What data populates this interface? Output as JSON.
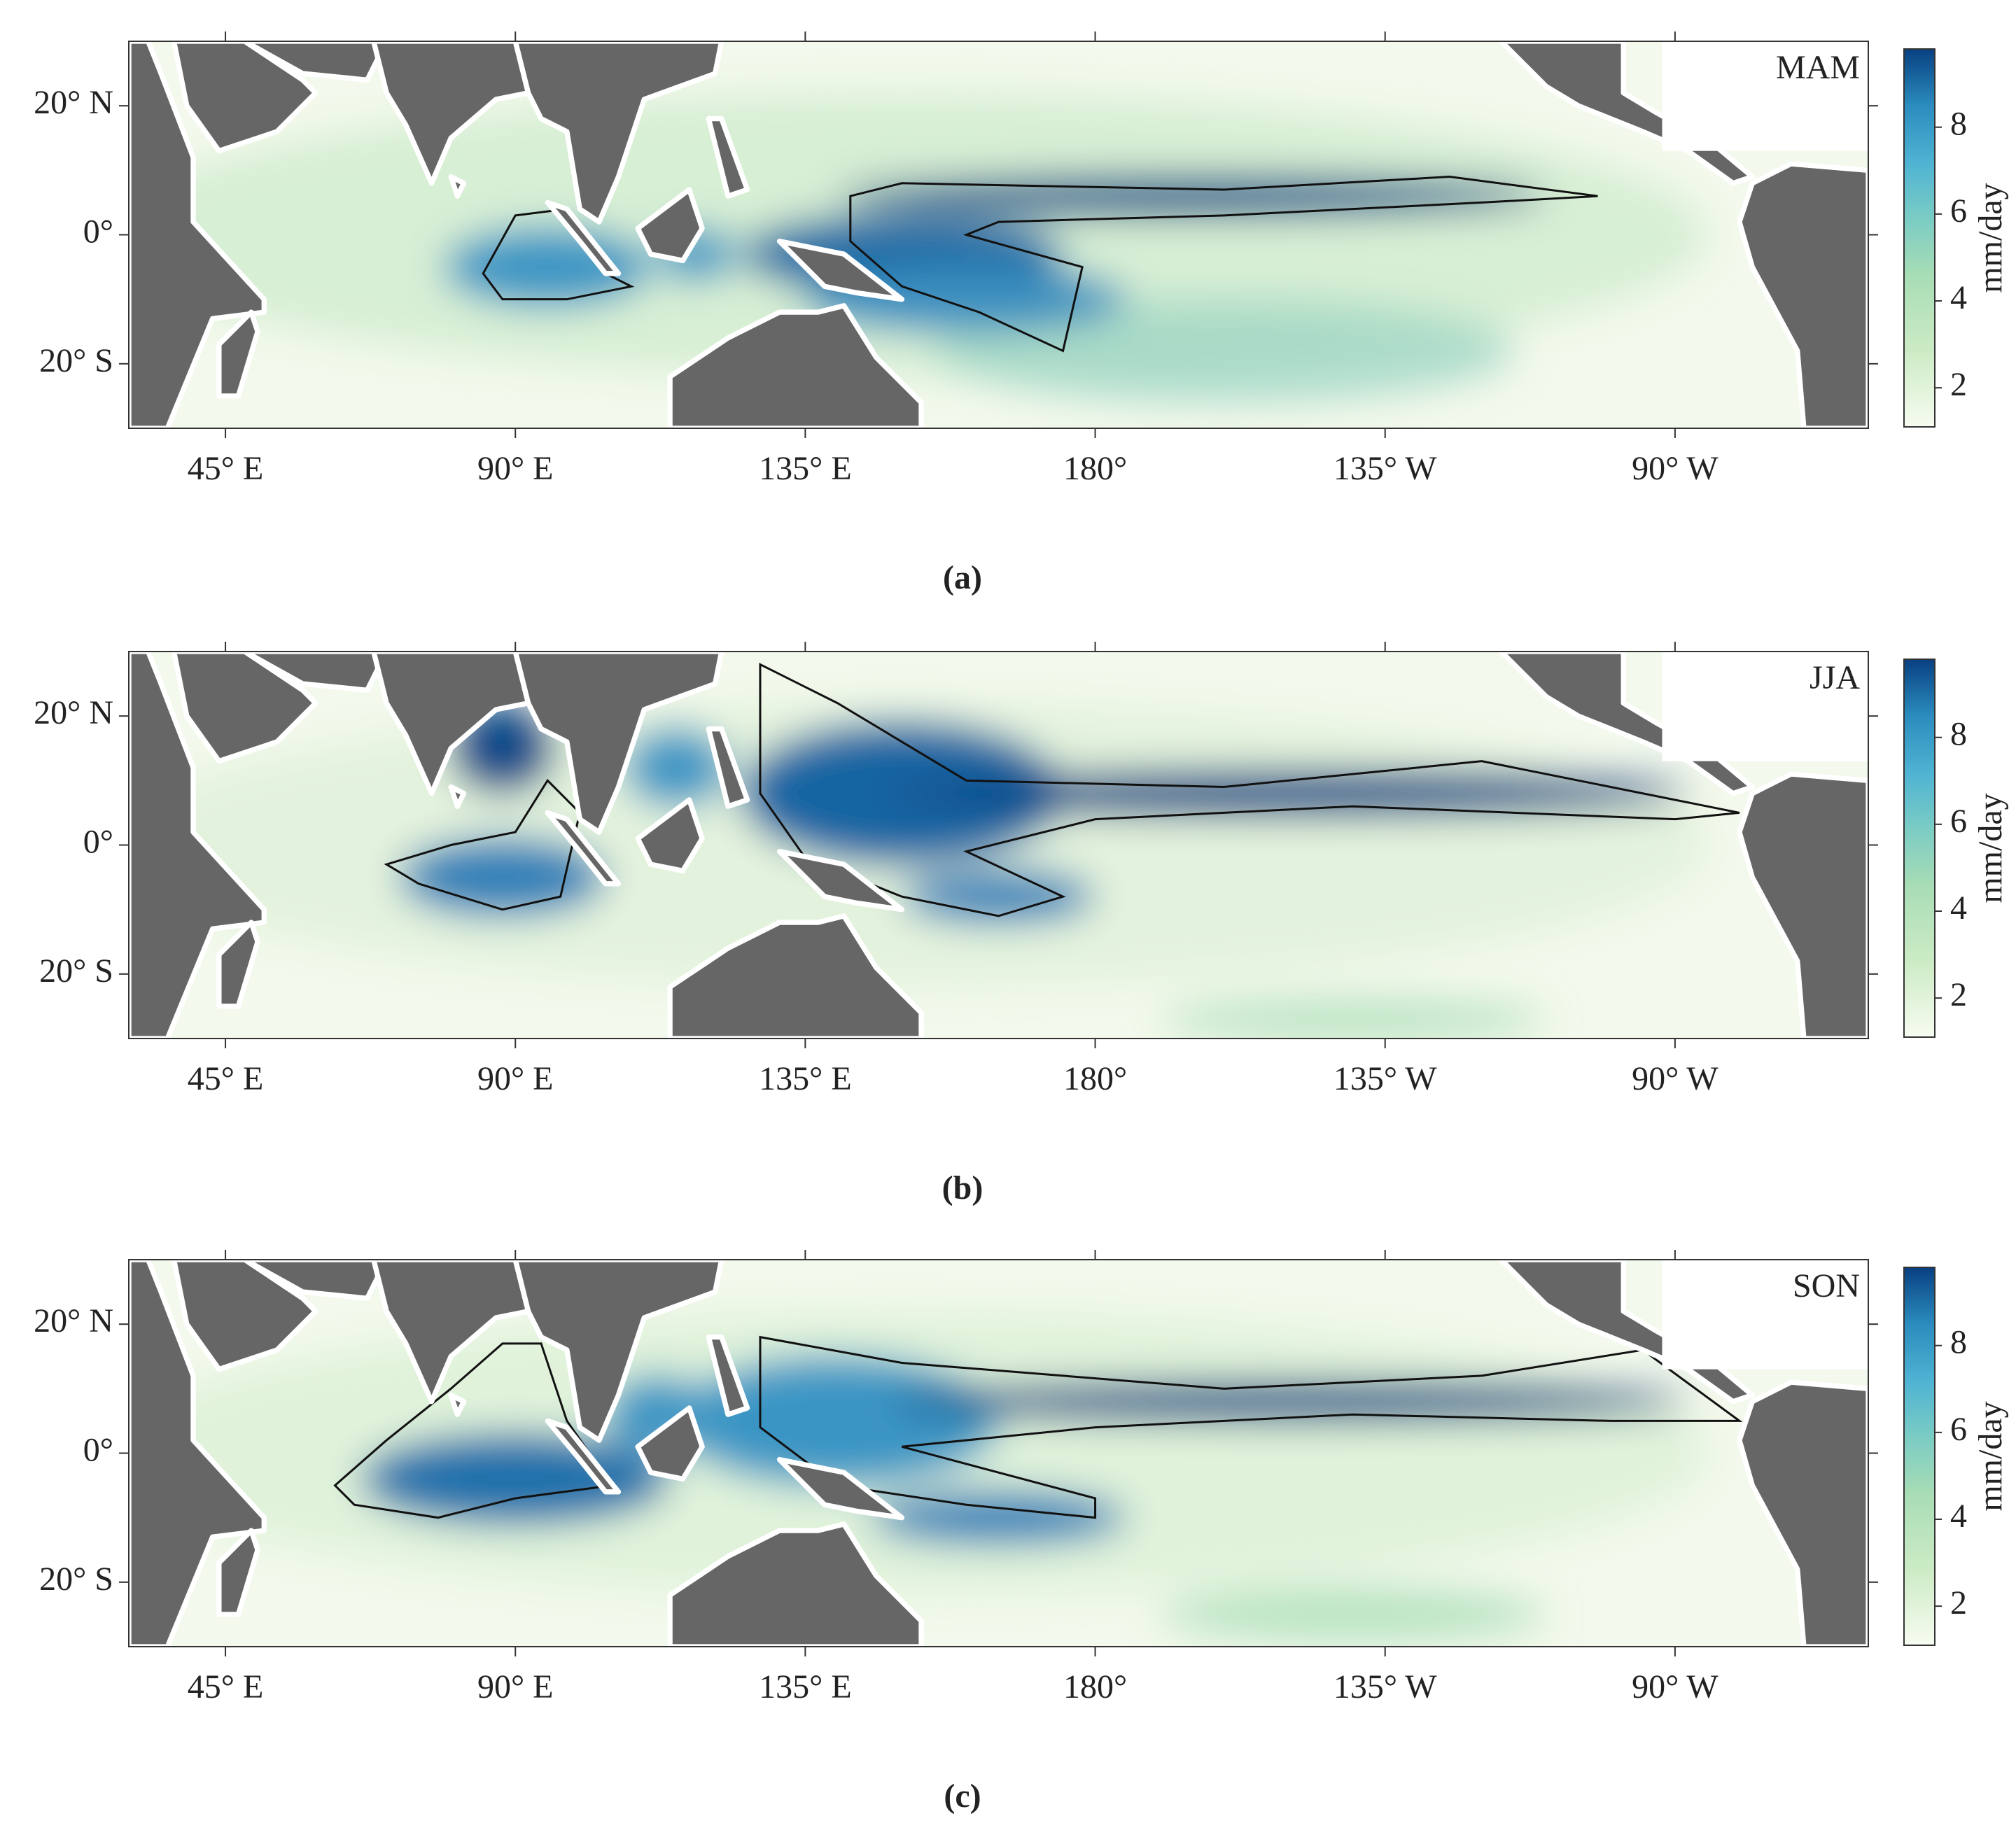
{
  "figure": {
    "panels": [
      {
        "season": "MAM",
        "caption": "(a)"
      },
      {
        "season": "JJA",
        "caption": "(b)"
      },
      {
        "season": "SON",
        "caption": "(c)"
      }
    ],
    "lon_lim": [
      30,
      300
    ],
    "lat_lim": [
      -30,
      30
    ],
    "lon_ticks": [
      {
        "value": 45,
        "label": "45° E"
      },
      {
        "value": 90,
        "label": "90° E"
      },
      {
        "value": 135,
        "label": "135° E"
      },
      {
        "value": 180,
        "label": "180°"
      },
      {
        "value": 225,
        "label": "135° W"
      },
      {
        "value": 270,
        "label": "90° W"
      }
    ],
    "lat_ticks": [
      {
        "value": 20,
        "label": "20° N"
      },
      {
        "value": 0,
        "label": "0°"
      },
      {
        "value": -20,
        "label": "20° S"
      }
    ],
    "colorbar": {
      "label": "mm/day",
      "lim": [
        1.1,
        9.8
      ],
      "ticks": [
        2,
        4,
        6,
        8
      ]
    }
  }
}
